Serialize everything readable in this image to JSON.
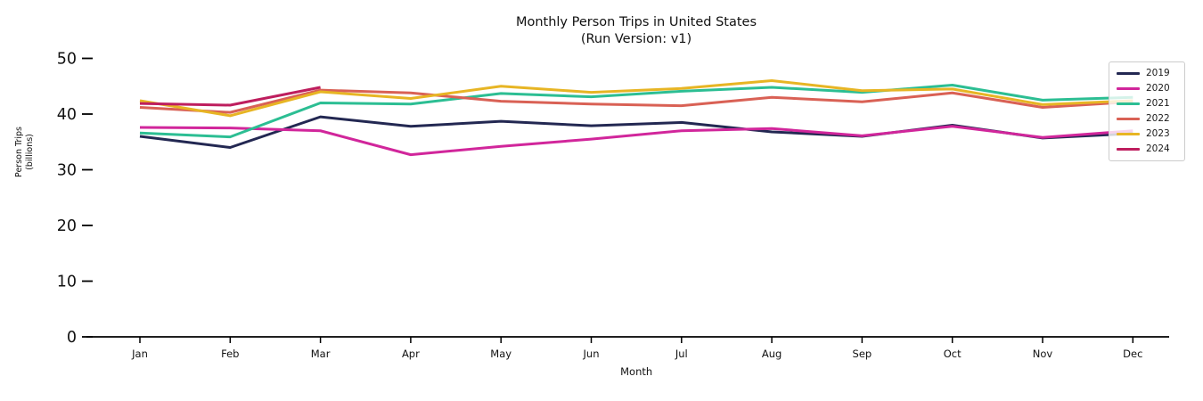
{
  "figure": {
    "title": "Monthly Person Trips in United States",
    "subtitle": "(Run Version: v1)"
  },
  "chart_data": {
    "type": "line",
    "title": "Monthly Person Trips in United States",
    "subtitle": "(Run Version: v1)",
    "xlabel": "Month",
    "ylabel_lines": [
      "Person Trips",
      "(billions)"
    ],
    "categories": [
      "Jan",
      "Feb",
      "Mar",
      "Apr",
      "May",
      "Jun",
      "Jul",
      "Aug",
      "Sep",
      "Oct",
      "Nov",
      "Dec"
    ],
    "yticks": [
      0,
      10,
      20,
      30,
      40,
      50
    ],
    "ylim": [
      0,
      52
    ],
    "grid": false,
    "legend_position": "upper right",
    "axis_color": "#000000",
    "tick_label_color": "#111111",
    "series": [
      {
        "name": "2019",
        "color": "#232852",
        "values": [
          36.0,
          34.0,
          39.5,
          37.8,
          38.7,
          37.9,
          38.5,
          36.8,
          36.0,
          38.0,
          35.7,
          36.5
        ]
      },
      {
        "name": "2020",
        "color": "#d1269b",
        "values": [
          37.6,
          37.5,
          37.0,
          32.7,
          34.2,
          35.5,
          37.0,
          37.4,
          36.1,
          37.8,
          35.8,
          37.0
        ]
      },
      {
        "name": "2021",
        "color": "#2cbe93",
        "values": [
          36.6,
          35.9,
          42.0,
          41.8,
          43.7,
          43.1,
          44.1,
          44.8,
          43.9,
          45.2,
          42.5,
          43.0
        ]
      },
      {
        "name": "2022",
        "color": "#d96155",
        "values": [
          41.2,
          40.3,
          44.3,
          43.8,
          42.3,
          41.8,
          41.5,
          43.0,
          42.2,
          43.8,
          41.2,
          42.2
        ]
      },
      {
        "name": "2023",
        "color": "#e7b524",
        "values": [
          42.4,
          39.7,
          44.0,
          42.8,
          45.0,
          43.9,
          44.6,
          46.0,
          44.2,
          44.5,
          41.7,
          42.4
        ]
      },
      {
        "name": "2024",
        "color": "#be1e5e",
        "values": [
          41.9,
          41.6,
          44.8,
          null,
          null,
          null,
          null,
          null,
          null,
          null,
          null,
          null
        ]
      }
    ]
  }
}
